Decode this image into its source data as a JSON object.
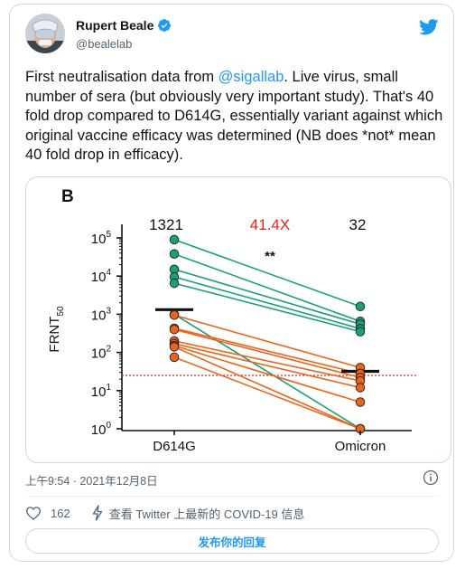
{
  "tweet": {
    "author": {
      "name": "Rupert Beale",
      "handle": "@bealelab"
    },
    "text_before": "First neutralisation data from ",
    "mention": "@sigallab",
    "text_after": ". Live virus, small number of sera (but obviously very important study). That's 40 fold drop compared to D614G, essentially variant against which original vaccine efficacy was determined (NB does *not* mean 40 fold drop in efficacy).",
    "timestamp": "上午9:54 · 2021年12月8日",
    "like_count": "162",
    "news_link": "查看 Twitter 上最新的 COVID-19 信息",
    "reply_button": "发布你的回复"
  },
  "colors": {
    "accent": "#1d9bf0",
    "green": "#19a077",
    "orange": "#eb6419",
    "red_label": "#e8231f"
  },
  "chart_data": {
    "type": "scatter",
    "panel_label": "B",
    "ylabel": "FRNT50",
    "ylabel_main": "FRNT",
    "ylabel_sub": "50",
    "yscale": "log",
    "ylim": [
      1,
      100000
    ],
    "y_ticks": [
      {
        "base": "10",
        "exp": "5"
      },
      {
        "base": "10",
        "exp": "4"
      },
      {
        "base": "10",
        "exp": "3"
      },
      {
        "base": "10",
        "exp": "2"
      },
      {
        "base": "10",
        "exp": "1"
      },
      {
        "base": "10",
        "exp": "0"
      }
    ],
    "categories": [
      "D614G",
      "Omicron"
    ],
    "geometric_means": [
      "1321",
      "32"
    ],
    "fold_change": "41.4X",
    "significance": "**",
    "threshold": 25,
    "gm_values": [
      1321,
      32
    ],
    "pairs": [
      {
        "group": "green",
        "d614g": 90000,
        "omicron": 1600
      },
      {
        "group": "green",
        "d614g": 38000,
        "omicron": 650
      },
      {
        "group": "green",
        "d614g": 15000,
        "omicron": 550
      },
      {
        "group": "green",
        "d614g": 9500,
        "omicron": 420
      },
      {
        "group": "green",
        "d614g": 6500,
        "omicron": 350
      },
      {
        "group": "green",
        "d614g": 1000,
        "omicron": 1
      },
      {
        "group": "orange",
        "d614g": 950,
        "omicron": 40
      },
      {
        "group": "orange",
        "d614g": 430,
        "omicron": 28
      },
      {
        "group": "orange",
        "d614g": 400,
        "omicron": 22
      },
      {
        "group": "orange",
        "d614g": 200,
        "omicron": 18
      },
      {
        "group": "orange",
        "d614g": 170,
        "omicron": 12
      },
      {
        "group": "orange",
        "d614g": 150,
        "omicron": 5
      },
      {
        "group": "orange",
        "d614g": 140,
        "omicron": 1
      },
      {
        "group": "orange",
        "d614g": 75,
        "omicron": 1
      }
    ]
  }
}
